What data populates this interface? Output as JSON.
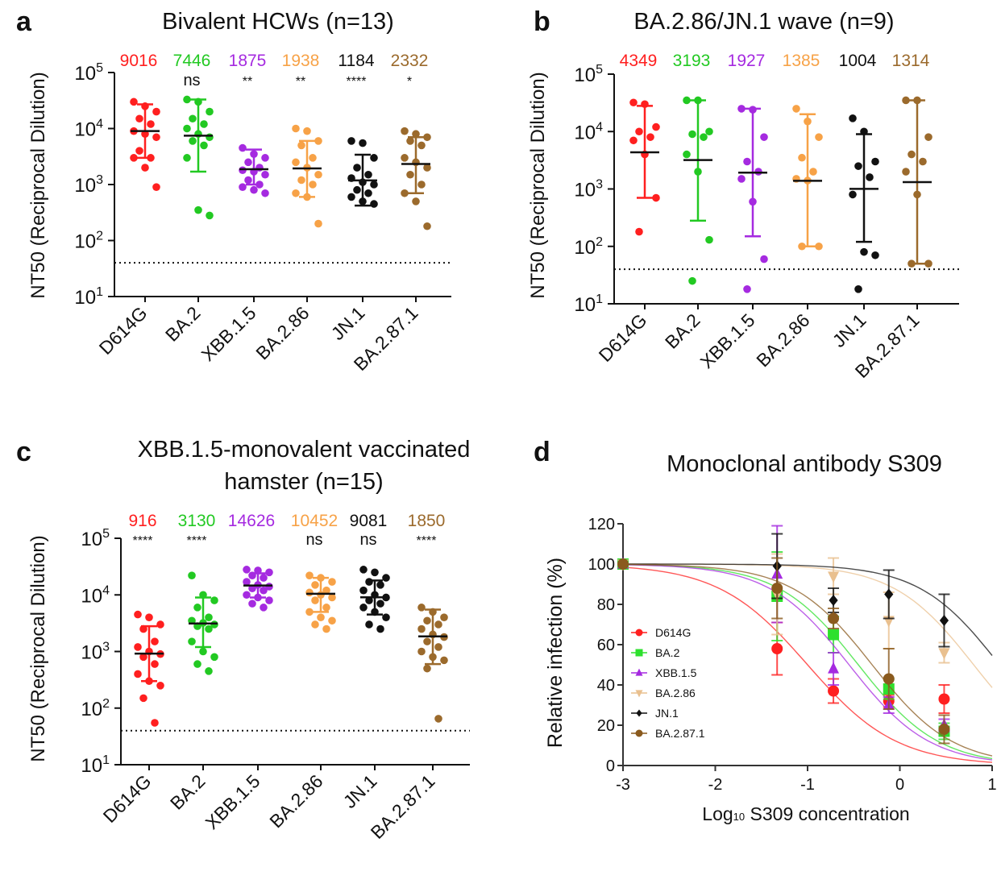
{
  "colors": {
    "D614G": "#ff1f1f",
    "BA.2": "#22c922",
    "XBB.1.5": "#a52ae0",
    "BA.2.86": "#f7a247",
    "JN.1": "#111111",
    "BA.2.87.1": "#9b6a2c",
    "BA.2.86_d": "#e9c08f",
    "BA.2.87.1_d": "#8a5a1e"
  },
  "chart_data": [
    {
      "type": "scatter",
      "panel_letter": "a",
      "title": "Bivalent HCWs (n=13)",
      "ylabel": "NT50 (Reciprocal Dilution)",
      "yscale": "log",
      "ylim": [
        10,
        100000
      ],
      "yticks": [
        "1",
        "2",
        "3",
        "4",
        "5"
      ],
      "detection_limit": 40,
      "categories": [
        "D614G",
        "BA.2",
        "XBB.1.5",
        "BA.2.86",
        "JN.1",
        "BA.2.87.1"
      ],
      "geomeans": [
        "9016",
        "7446",
        "1875",
        "1938",
        "1184",
        "2332"
      ],
      "significance": [
        "",
        "ns",
        "**",
        "**",
        "****",
        "*"
      ],
      "points": [
        [
          30000,
          25000,
          20000,
          15000,
          12000,
          9000,
          8000,
          7000,
          4000,
          3000,
          3000,
          2000,
          900
        ],
        [
          33000,
          30000,
          20000,
          15000,
          12000,
          10000,
          8000,
          7000,
          6000,
          5000,
          3000,
          350,
          280
        ],
        [
          4500,
          3500,
          3000,
          2500,
          2000,
          1800,
          1700,
          1500,
          1200,
          1000,
          900,
          800,
          700
        ],
        [
          10000,
          9000,
          6000,
          5000,
          3000,
          2500,
          2000,
          1500,
          1200,
          1000,
          700,
          600,
          200
        ],
        [
          6000,
          5500,
          3000,
          2000,
          1500,
          1300,
          1100,
          1000,
          800,
          700,
          600,
          500,
          450
        ],
        [
          9000,
          8000,
          7000,
          6000,
          5000,
          3000,
          2500,
          2000,
          1500,
          1000,
          700,
          500,
          180
        ]
      ],
      "error_range": [
        [
          3000,
          27000
        ],
        [
          1700,
          33000
        ],
        [
          1000,
          4200
        ],
        [
          600,
          6000
        ],
        [
          420,
          3400
        ],
        [
          700,
          7000
        ]
      ]
    },
    {
      "type": "scatter",
      "panel_letter": "b",
      "title": "BA.2.86/JN.1 wave (n=9)",
      "ylabel": "NT50 (Reciprocal Dilution)",
      "yscale": "log",
      "ylim": [
        10,
        100000
      ],
      "yticks": [
        "1",
        "2",
        "3",
        "4",
        "5"
      ],
      "detection_limit": 40,
      "categories": [
        "D614G",
        "BA.2",
        "XBB.1.5",
        "BA.2.86",
        "JN.1",
        "BA.2.87.1"
      ],
      "geomeans": [
        "4349",
        "3193",
        "1927",
        "1385",
        "1004",
        "1314"
      ],
      "significance": [
        "",
        "",
        "",
        "",
        "",
        ""
      ],
      "points": [
        [
          32000,
          30000,
          12000,
          10000,
          8000,
          7000,
          4000,
          700,
          180
        ],
        [
          35000,
          35000,
          10000,
          9000,
          8000,
          4000,
          2000,
          130,
          25
        ],
        [
          25000,
          24000,
          8000,
          3000,
          2000,
          1500,
          600,
          60,
          18
        ],
        [
          25000,
          15000,
          8000,
          3500,
          2000,
          1500,
          1400,
          100,
          100
        ],
        [
          17000,
          10000,
          3000,
          2500,
          1600,
          800,
          80,
          70,
          18
        ],
        [
          35000,
          35000,
          8000,
          4000,
          3000,
          2000,
          800,
          50,
          50
        ]
      ],
      "error_range": [
        [
          700,
          28000
        ],
        [
          280,
          35000
        ],
        [
          150,
          25000
        ],
        [
          100,
          20000
        ],
        [
          120,
          9000
        ],
        [
          50,
          35000
        ]
      ]
    },
    {
      "type": "scatter",
      "panel_letter": "c",
      "title": "XBB.1.5-monovalent vaccinated",
      "title_line2": "hamster  (n=15)",
      "ylabel": "NT50 (Reciprocal Dilution)",
      "yscale": "log",
      "ylim": [
        10,
        100000
      ],
      "yticks": [
        "1",
        "2",
        "3",
        "4",
        "5"
      ],
      "detection_limit": 40,
      "categories": [
        "D614G",
        "BA.2",
        "XBB.1.5",
        "BA.2.86",
        "JN.1",
        "BA.2.87.1"
      ],
      "geomeans": [
        "916",
        "3130",
        "14626",
        "10452",
        "9081",
        "1850"
      ],
      "significance": [
        "****",
        "****",
        "",
        "ns",
        "ns",
        "****"
      ],
      "points": [
        [
          4500,
          4000,
          3000,
          2500,
          1500,
          1200,
          1000,
          900,
          800,
          600,
          400,
          300,
          250,
          150,
          55
        ],
        [
          22000,
          10000,
          8000,
          6000,
          4000,
          3500,
          3200,
          3000,
          2800,
          2500,
          1500,
          1000,
          800,
          600,
          450
        ],
        [
          28000,
          27000,
          25000,
          22000,
          20000,
          17000,
          15000,
          14000,
          13000,
          12000,
          10000,
          9000,
          8000,
          7000,
          6000
        ],
        [
          22000,
          20000,
          17000,
          15000,
          12000,
          11000,
          10000,
          9000,
          8000,
          6000,
          5000,
          4000,
          3500,
          3000,
          2500
        ],
        [
          28000,
          25000,
          20000,
          17000,
          15000,
          12000,
          10000,
          9000,
          8000,
          7000,
          6000,
          5000,
          4000,
          3000,
          2500
        ],
        [
          6000,
          5000,
          4000,
          3500,
          3000,
          2500,
          2000,
          1800,
          1500,
          1200,
          1000,
          800,
          700,
          500,
          65
        ]
      ],
      "error_range": [
        [
          300,
          2800
        ],
        [
          1200,
          9000
        ],
        [
          9000,
          24000
        ],
        [
          5000,
          20000
        ],
        [
          4500,
          18000
        ],
        [
          600,
          5500
        ]
      ]
    },
    {
      "type": "line",
      "panel_letter": "d",
      "title": "Monoclonal antibody S309",
      "xlabel_main": "Log",
      "xlabel_sub": "10",
      "xlabel_rest": " S309 concentration",
      "ylabel": "Relative infection (%)",
      "xlim": [
        -3,
        1
      ],
      "ylim": [
        0,
        120
      ],
      "xticks": [
        "-3",
        "-2",
        "-1",
        "0",
        "1"
      ],
      "yticks": [
        "0",
        "20",
        "40",
        "60",
        "80",
        "100",
        "120"
      ],
      "x": [
        -3,
        -1.33,
        -0.72,
        -0.12,
        0.48
      ],
      "series": [
        {
          "name": "D614G",
          "marker": "circle",
          "values": [
            100,
            58,
            37,
            32,
            33
          ],
          "err": [
            0,
            13,
            6,
            3,
            7
          ],
          "log_ic50": -1.0,
          "hill": 0.9
        },
        {
          "name": "BA.2",
          "marker": "square",
          "values": [
            100,
            84,
            65,
            38,
            17
          ],
          "err": [
            0,
            22,
            9,
            5,
            4
          ],
          "log_ic50": -0.45,
          "hill": 1.0
        },
        {
          "name": "XBB.1.5",
          "marker": "triangle-up",
          "values": [
            100,
            95,
            48,
            30,
            20
          ],
          "err": [
            0,
            24,
            8,
            4,
            3
          ],
          "log_ic50": -0.55,
          "hill": 1.0
        },
        {
          "name": "BA.2.86",
          "marker": "triangle-down",
          "values": [
            100,
            85,
            94,
            72,
            56
          ],
          "err": [
            0,
            20,
            9,
            14,
            5
          ],
          "log_ic50": 0.8,
          "hill": 1.0
        },
        {
          "name": "JN.1",
          "marker": "diamond",
          "values": [
            100,
            99,
            82,
            85,
            72
          ],
          "err": [
            0,
            16,
            6,
            12,
            13
          ],
          "log_ic50": 1.08,
          "hill": 1.0
        },
        {
          "name": "BA.2.87.1",
          "marker": "circle",
          "values": [
            100,
            88,
            73,
            43,
            18
          ],
          "err": [
            0,
            15,
            5,
            15,
            7
          ],
          "log_ic50": -0.3,
          "hill": 1.0
        }
      ]
    }
  ]
}
